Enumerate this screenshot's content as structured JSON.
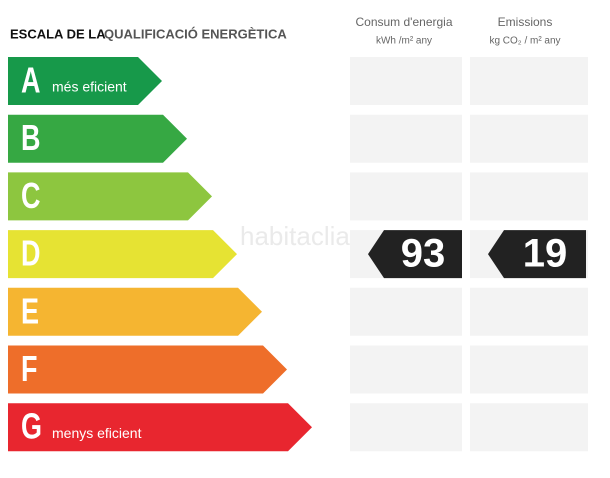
{
  "header": {
    "title_part1": "ESCALA DE LA",
    "title_part2": "QUALIFICACIÓ ENERGÈTICA",
    "columns": [
      {
        "title": "Consum d'energia",
        "unit": "kWh /m² any"
      },
      {
        "title": "Emissions",
        "unit": "kg CO₂ / m² any"
      }
    ]
  },
  "grades": [
    {
      "letter": "A",
      "label": "més eficient",
      "color": "#17994a"
    },
    {
      "letter": "B",
      "color": "#36a843"
    },
    {
      "letter": "C",
      "color": "#8dc63f"
    },
    {
      "letter": "D",
      "color": "#e6e333",
      "consumption": 93,
      "emissions": 19
    },
    {
      "letter": "E",
      "color": "#f5b531"
    },
    {
      "letter": "F",
      "color": "#ee6e2a"
    },
    {
      "letter": "G",
      "label": "menys eficient",
      "color": "#e8262f"
    }
  ],
  "watermark": "habitaclia"
}
